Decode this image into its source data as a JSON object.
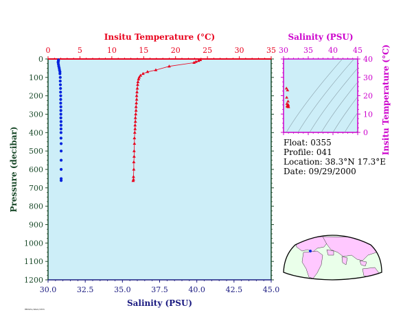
{
  "colors": {
    "plot_bg": "#cdeef8",
    "temperature": "#e8001c",
    "salinity": "#0022dd",
    "magenta": "#cc00cc",
    "dark_green": "#1a4a2a",
    "navy": "#1a1a80",
    "land": "#ffc8ff",
    "ocean": "#eaffea"
  },
  "info": {
    "float": "Float:  0355",
    "profile": "Profile:  041",
    "location": "Location:  38.3°N  17.3°E",
    "date": "Date:  09/29/2000"
  },
  "footer_text": "MEDSEA/ARGO/0355",
  "chart_data": [
    {
      "type": "line",
      "title": "",
      "top_axis": {
        "label": "Insitu Temperature (°C)",
        "range": [
          0,
          35
        ],
        "ticks": [
          0,
          5,
          10,
          15,
          20,
          25,
          30,
          35
        ]
      },
      "bottom_axis": {
        "label": "Salinity (PSU)",
        "range": [
          30,
          45
        ],
        "ticks": [
          "30.0",
          "32.5",
          "35.0",
          "37.5",
          "40.0",
          "42.5",
          "45.0"
        ]
      },
      "y_axis": {
        "label": "Pressure (decibar)",
        "range": [
          0,
          1200
        ],
        "inverted": true,
        "ticks": [
          0,
          100,
          200,
          300,
          400,
          500,
          600,
          700,
          800,
          900,
          1000,
          1100,
          1200
        ]
      },
      "grid": false,
      "series": [
        {
          "axis": "top",
          "marker": "triangle",
          "x": [
            23.9,
            23.6,
            23.2,
            22.9,
            19.0,
            16.9,
            15.6,
            14.9,
            14.5,
            14.3,
            14.2,
            14.1,
            14.05,
            14.0,
            13.95,
            13.9,
            13.9,
            13.85,
            13.8,
            13.8,
            13.75,
            13.7,
            13.7,
            13.65,
            13.65,
            13.6,
            13.55,
            13.55,
            13.5,
            13.5,
            13.45,
            13.45,
            13.4,
            13.4,
            13.35
          ],
          "y": [
            5,
            10,
            15,
            20,
            40,
            60,
            70,
            80,
            90,
            100,
            110,
            125,
            140,
            160,
            180,
            200,
            220,
            240,
            260,
            280,
            300,
            320,
            340,
            360,
            380,
            400,
            430,
            460,
            500,
            530,
            560,
            600,
            640,
            655,
            662
          ]
        },
        {
          "axis": "bottom",
          "marker": "circle",
          "x": [
            30.7,
            30.7,
            30.68,
            30.68,
            30.7,
            30.72,
            30.75,
            30.77,
            30.8,
            30.8,
            30.82,
            30.82,
            30.83,
            30.84,
            30.84,
            30.85,
            30.85,
            30.85,
            30.86,
            30.86,
            30.86,
            30.86,
            30.87,
            30.87,
            30.87,
            30.87,
            30.87,
            30.88,
            30.88,
            30.88,
            30.88,
            30.88,
            30.88
          ],
          "y": [
            5,
            10,
            15,
            20,
            30,
            40,
            50,
            60,
            70,
            80,
            100,
            120,
            140,
            160,
            180,
            200,
            220,
            240,
            260,
            280,
            300,
            320,
            340,
            360,
            380,
            400,
            430,
            460,
            500,
            550,
            600,
            650,
            660
          ]
        }
      ]
    },
    {
      "type": "scatter",
      "title": "",
      "x_axis": {
        "label": "Salinity (PSU)",
        "range": [
          30,
          45
        ],
        "ticks": [
          30,
          35,
          40,
          45
        ]
      },
      "y_axis": {
        "label": "Insitu Temperature (°C)",
        "range": [
          0,
          40
        ],
        "ticks": [
          0,
          10,
          20,
          30,
          40
        ]
      },
      "density_contours": true,
      "points": {
        "salinity": [
          30.7,
          30.7,
          30.75,
          30.8,
          30.8,
          30.85,
          30.85,
          30.87,
          30.88,
          30.88
        ],
        "temperature": [
          24.0,
          23.0,
          19.0,
          16.9,
          15.6,
          15.0,
          14.5,
          14.2,
          14.0,
          13.8
        ]
      }
    }
  ]
}
